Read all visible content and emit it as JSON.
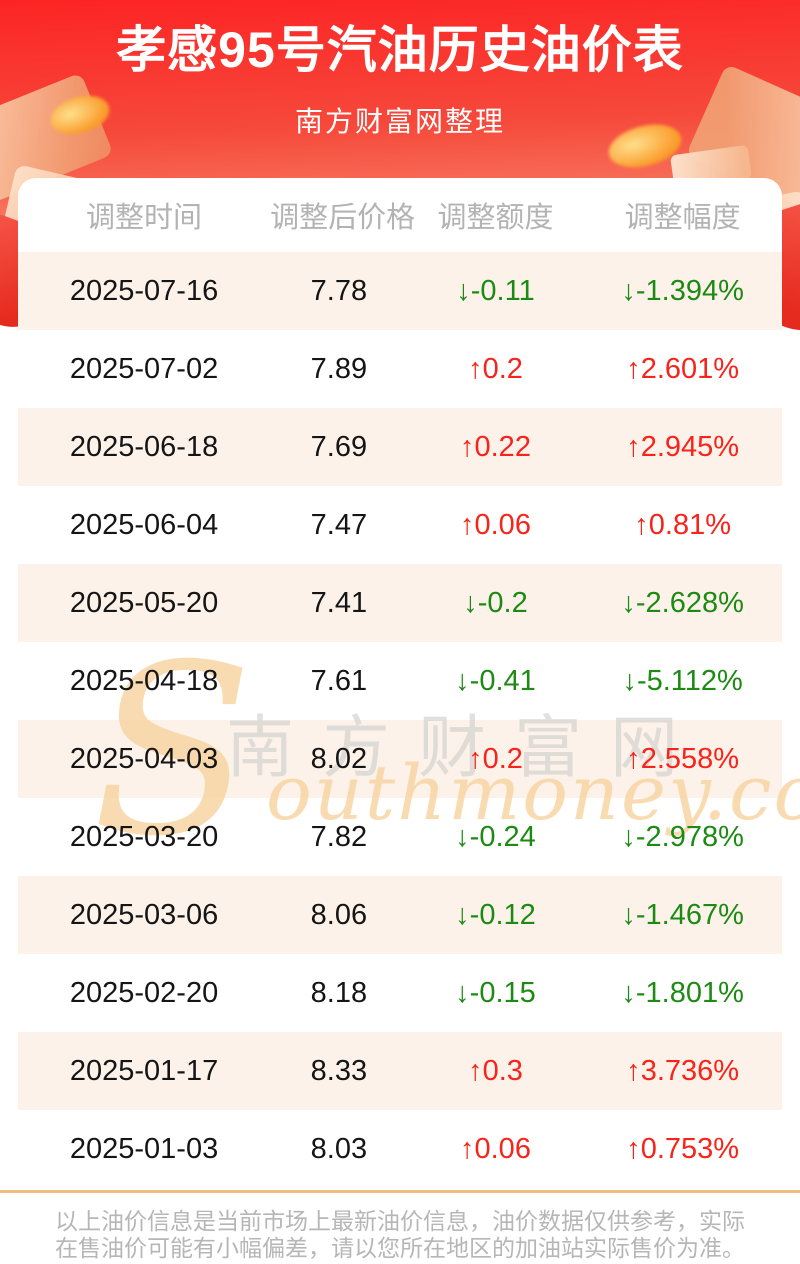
{
  "page": {
    "title": "孝感95号汽油历史油价表",
    "subtitle": "南方财富网整理"
  },
  "table": {
    "headers": [
      "调整时间",
      "调整后价格",
      "调整额度",
      "调整幅度"
    ],
    "rows": [
      {
        "date": "2025-07-16",
        "price": "7.78",
        "change": "↓-0.11",
        "percent": "↓-1.394%",
        "direction": "down"
      },
      {
        "date": "2025-07-02",
        "price": "7.89",
        "change": "↑0.2",
        "percent": "↑2.601%",
        "direction": "up"
      },
      {
        "date": "2025-06-18",
        "price": "7.69",
        "change": "↑0.22",
        "percent": "↑2.945%",
        "direction": "up"
      },
      {
        "date": "2025-06-04",
        "price": "7.47",
        "change": "↑0.06",
        "percent": "↑0.81%",
        "direction": "up"
      },
      {
        "date": "2025-05-20",
        "price": "7.41",
        "change": "↓-0.2",
        "percent": "↓-2.628%",
        "direction": "down"
      },
      {
        "date": "2025-04-18",
        "price": "7.61",
        "change": "↓-0.41",
        "percent": "↓-5.112%",
        "direction": "down"
      },
      {
        "date": "2025-04-03",
        "price": "8.02",
        "change": "↑0.2",
        "percent": "↑2.558%",
        "direction": "up"
      },
      {
        "date": "2025-03-20",
        "price": "7.82",
        "change": "↓-0.24",
        "percent": "↓-2.978%",
        "direction": "down"
      },
      {
        "date": "2025-03-06",
        "price": "8.06",
        "change": "↓-0.12",
        "percent": "↓-1.467%",
        "direction": "down"
      },
      {
        "date": "2025-02-20",
        "price": "8.18",
        "change": "↓-0.15",
        "percent": "↓-1.801%",
        "direction": "down"
      },
      {
        "date": "2025-01-17",
        "price": "8.33",
        "change": "↑0.3",
        "percent": "↑3.736%",
        "direction": "up"
      },
      {
        "date": "2025-01-03",
        "price": "8.03",
        "change": "↑0.06",
        "percent": "↑0.753%",
        "direction": "up"
      }
    ]
  },
  "watermark": {
    "initial": "S",
    "cn": "南方财富网",
    "en": "outhmoney.com"
  },
  "footer": {
    "disclaimer": "以上油价信息是当前市场上最新油价信息，油价数据仅供参考，实际在售油价可能有小幅偏差，请以您所在地区的加油站实际售价为准。"
  },
  "colors": {
    "up_red": "#f8231a",
    "down_green": "#1d8a14",
    "row_alt_bg": "#fdf2ea",
    "hero_red_top": "#fc2424",
    "hero_red_bottom": "#f99b7c",
    "footer_line": "#f2bd80",
    "watermark_orange": "#f8d3a0"
  }
}
